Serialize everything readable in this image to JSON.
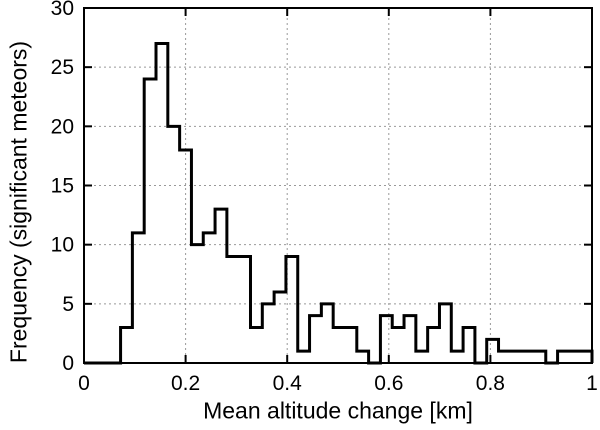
{
  "figure": {
    "background_color": "#ffffff",
    "line_color": "#000000",
    "frame_color": "#000000",
    "grid_color": "#999999"
  },
  "chart_data": {
    "type": "bar",
    "style": "step-histogram-outline",
    "title": "",
    "xlabel": "Mean altitude change [km]",
    "ylabel": "Frequency (significant meteors)",
    "xlim": [
      0,
      1
    ],
    "ylim": [
      0,
      30
    ],
    "xticks": [
      0,
      0.2,
      0.4,
      0.6,
      0.8,
      1
    ],
    "xtick_labels": [
      "0",
      "0.2",
      "0.4",
      "0.6",
      "0.8",
      "1"
    ],
    "yticks": [
      0,
      5,
      10,
      15,
      20,
      25,
      30
    ],
    "ytick_labels": [
      "0",
      "5",
      "10",
      "15",
      "20",
      "25",
      "30"
    ],
    "grid": true,
    "grid_style": "dotted",
    "legend_position": "none",
    "bin_start": 0.072,
    "bin_width": 0.02325,
    "values": [
      3,
      11,
      24,
      27,
      20,
      18,
      10,
      11,
      13,
      9,
      9,
      3,
      5,
      6,
      9,
      1,
      4,
      5,
      3,
      3,
      1,
      0,
      4,
      3,
      4,
      1,
      3,
      5,
      1,
      3,
      0,
      2,
      1,
      1,
      1,
      1,
      0,
      1,
      1,
      1
    ]
  }
}
